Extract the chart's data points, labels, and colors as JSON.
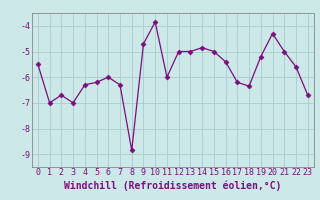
{
  "x": [
    0,
    1,
    2,
    3,
    4,
    5,
    6,
    7,
    8,
    9,
    10,
    11,
    12,
    13,
    14,
    15,
    16,
    17,
    18,
    19,
    20,
    21,
    22,
    23
  ],
  "y": [
    -5.5,
    -7.0,
    -6.7,
    -7.0,
    -6.3,
    -6.2,
    -6.0,
    -6.3,
    -8.85,
    -4.7,
    -3.85,
    -6.0,
    -5.0,
    -5.0,
    -4.85,
    -5.0,
    -5.4,
    -6.2,
    -6.35,
    -5.2,
    -4.3,
    -5.0,
    -5.6,
    -6.7
  ],
  "line_color": "#7B0E7B",
  "marker": "D",
  "marker_size": 2.5,
  "background_color": "#cce8e8",
  "grid_color": "#aacccc",
  "xlabel": "Windchill (Refroidissement éolien,°C)",
  "ylim": [
    -9.5,
    -3.5
  ],
  "xlim": [
    -0.5,
    23.5
  ],
  "yticks": [
    -9,
    -8,
    -7,
    -6,
    -5,
    -4
  ],
  "xticks": [
    0,
    1,
    2,
    3,
    4,
    5,
    6,
    7,
    8,
    9,
    10,
    11,
    12,
    13,
    14,
    15,
    16,
    17,
    18,
    19,
    20,
    21,
    22,
    23
  ],
  "tick_color": "#7B0E7B",
  "label_color": "#7B0E7B",
  "tick_fontsize": 6,
  "xlabel_fontsize": 7
}
